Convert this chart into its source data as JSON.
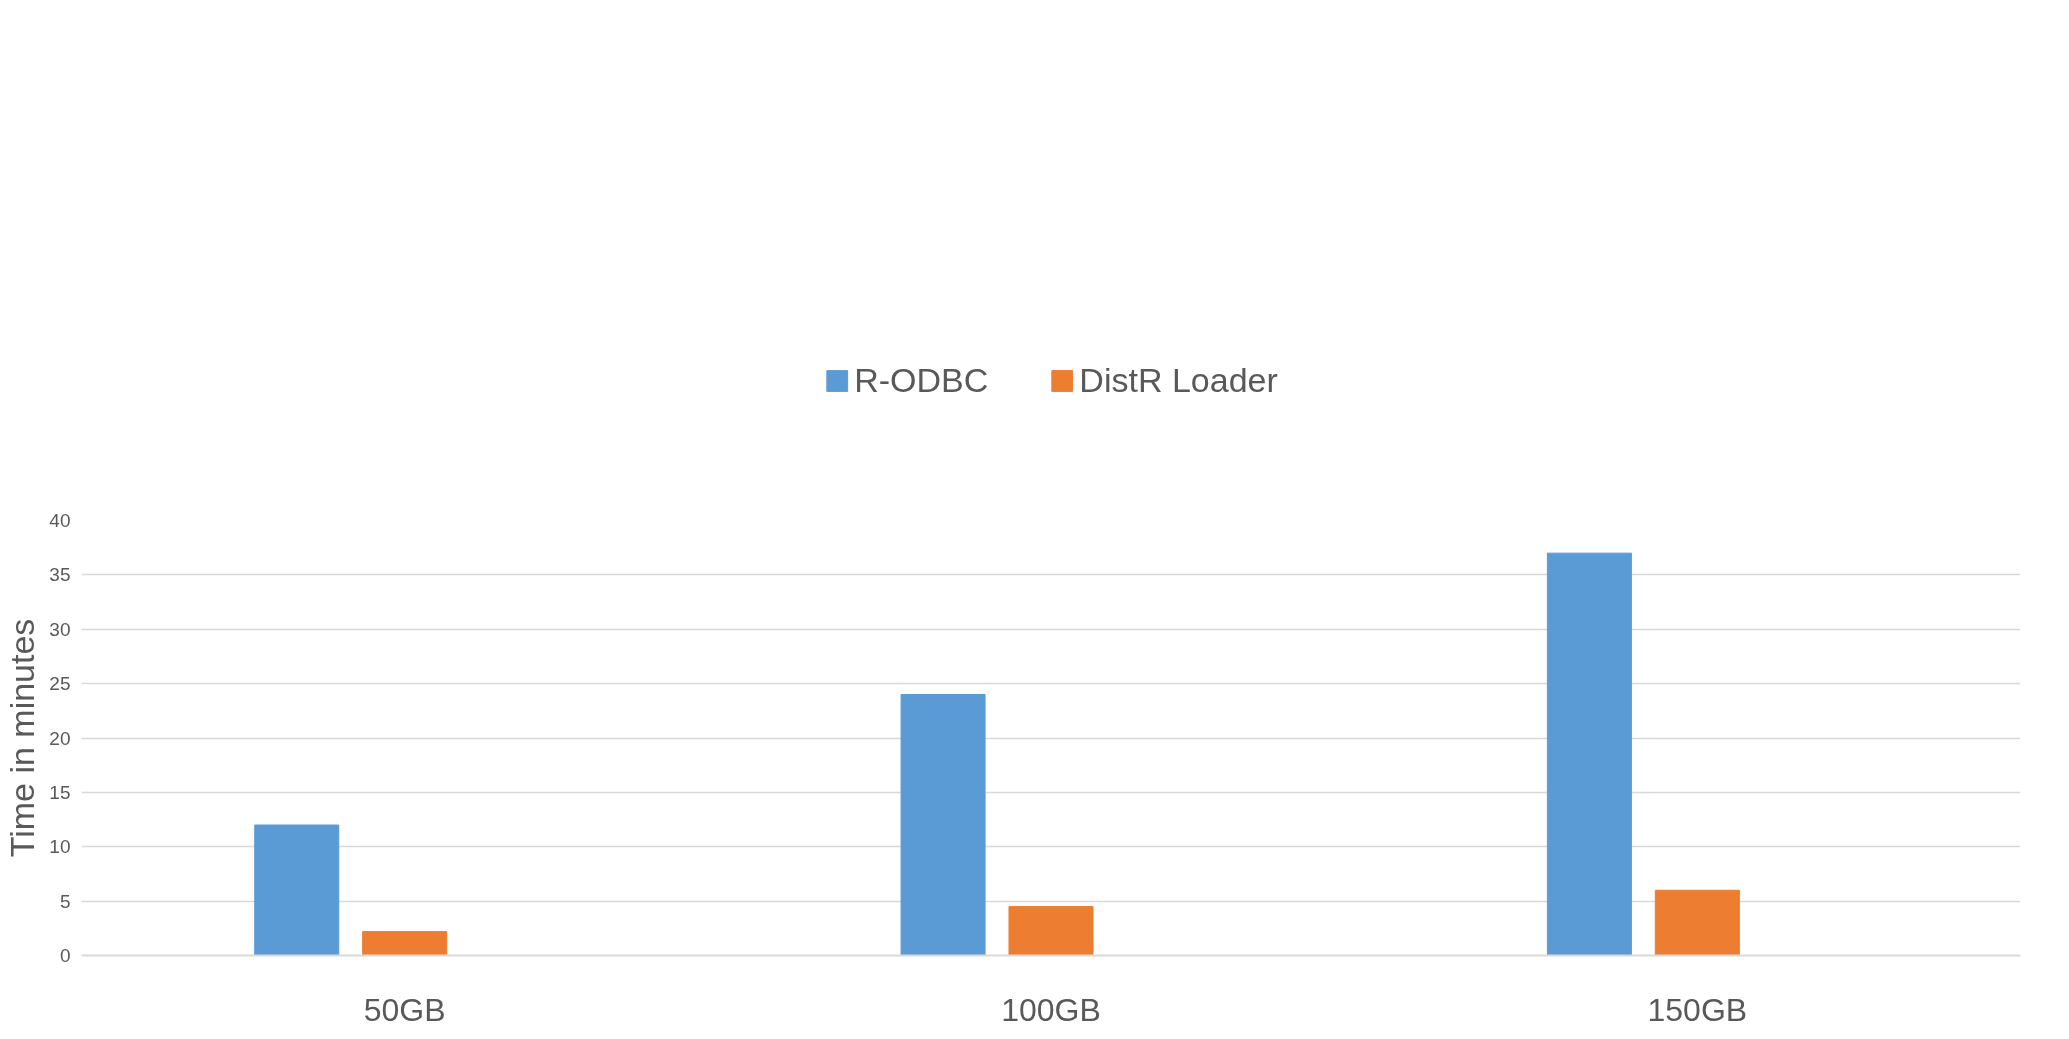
{
  "chart_data": {
    "type": "bar",
    "categories": [
      "50GB",
      "100GB",
      "150GB"
    ],
    "ylabel": "Time in minutes",
    "series": [
      {
        "name": "R-ODBC",
        "color": "#5b9bd5",
        "values": [
          12,
          24,
          37
        ]
      },
      {
        "name": "DistR Loader",
        "color": "#ed7d31",
        "values": [
          2.2,
          4.5,
          6
        ]
      },
      {
        "color": "#a5a5a5",
        "values": [
          0,
          0,
          0
        ]
      }
    ],
    "ylim": [
      0,
      40
    ],
    "yticks": [
      0,
      5,
      10,
      15,
      20,
      25,
      30,
      35,
      40
    ],
    "grid": "y",
    "legend": "top"
  }
}
